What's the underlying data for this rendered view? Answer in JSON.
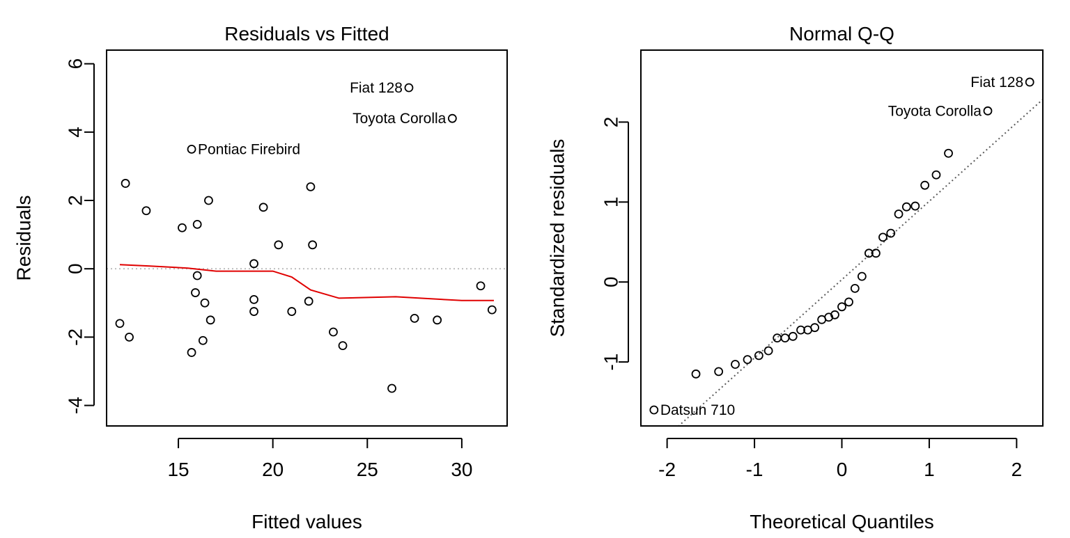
{
  "chart_data": [
    {
      "type": "scatter",
      "title": "Residuals vs Fitted",
      "xlabel": "Fitted values",
      "ylabel": "Residuals",
      "xlim": [
        11.2,
        32.4
      ],
      "ylim": [
        -4.6,
        6.4
      ],
      "xticks": [
        15,
        20,
        25,
        30
      ],
      "yticks": [
        -4,
        -2,
        0,
        2,
        4,
        6
      ],
      "reference_line": {
        "y": 0,
        "style": "dotted",
        "color": "#bdbdbd"
      },
      "smooth": {
        "color": "#e00000",
        "x": [
          11.9,
          13.5,
          15.5,
          17.0,
          19.0,
          20.0,
          21.0,
          22.0,
          23.5,
          26.5,
          30.0,
          31.7
        ],
        "y": [
          0.12,
          0.08,
          0.02,
          -0.07,
          -0.07,
          -0.07,
          -0.24,
          -0.62,
          -0.86,
          -0.82,
          -0.93,
          -0.93
        ]
      },
      "points": [
        {
          "x": 11.9,
          "y": -1.6
        },
        {
          "x": 12.2,
          "y": 2.5
        },
        {
          "x": 12.4,
          "y": -2.0
        },
        {
          "x": 13.3,
          "y": 1.7
        },
        {
          "x": 15.2,
          "y": 1.2
        },
        {
          "x": 15.7,
          "y": 3.5
        },
        {
          "x": 15.7,
          "y": -2.45
        },
        {
          "x": 15.9,
          "y": -0.7
        },
        {
          "x": 16.0,
          "y": 1.3
        },
        {
          "x": 16.0,
          "y": -0.2
        },
        {
          "x": 16.3,
          "y": -2.1
        },
        {
          "x": 16.4,
          "y": -1.0
        },
        {
          "x": 16.6,
          "y": 2.0
        },
        {
          "x": 16.7,
          "y": -1.5
        },
        {
          "x": 19.0,
          "y": 0.15
        },
        {
          "x": 19.0,
          "y": -0.9
        },
        {
          "x": 19.0,
          "y": -1.25
        },
        {
          "x": 19.5,
          "y": 1.8
        },
        {
          "x": 20.3,
          "y": 0.7
        },
        {
          "x": 21.0,
          "y": -1.25
        },
        {
          "x": 21.9,
          "y": -0.95
        },
        {
          "x": 22.0,
          "y": 2.4
        },
        {
          "x": 22.1,
          "y": 0.7
        },
        {
          "x": 23.2,
          "y": -1.85
        },
        {
          "x": 23.7,
          "y": -2.25
        },
        {
          "x": 26.3,
          "y": -3.5
        },
        {
          "x": 27.2,
          "y": 5.3
        },
        {
          "x": 27.5,
          "y": -1.45
        },
        {
          "x": 28.7,
          "y": -1.5
        },
        {
          "x": 29.5,
          "y": 4.4
        },
        {
          "x": 31.0,
          "y": -0.5
        },
        {
          "x": 31.6,
          "y": -1.2
        }
      ],
      "annotations": [
        {
          "text": "Fiat 128",
          "x": 27.2,
          "y": 5.3,
          "side": "left"
        },
        {
          "text": "Toyota Corolla",
          "x": 29.5,
          "y": 4.4,
          "side": "left"
        },
        {
          "text": "Pontiac Firebird",
          "x": 15.7,
          "y": 3.5,
          "side": "right"
        }
      ]
    },
    {
      "type": "scatter",
      "title": "Normal Q-Q",
      "xlabel": "Theoretical Quantiles",
      "ylabel": "Standardized residuals",
      "xlim": [
        -2.3,
        2.3
      ],
      "ylim": [
        -1.8,
        2.9
      ],
      "xticks": [
        -2,
        -1,
        0,
        1,
        2
      ],
      "yticks": [
        -1,
        0,
        1,
        2
      ],
      "reference_line": {
        "intercept": 0.03,
        "slope": 0.98,
        "style": "dotted",
        "color": "#5a5a5a"
      },
      "points": [
        {
          "x": -2.15,
          "y": -1.6
        },
        {
          "x": -1.67,
          "y": -1.15
        },
        {
          "x": -1.41,
          "y": -1.12
        },
        {
          "x": -1.22,
          "y": -1.03
        },
        {
          "x": -1.08,
          "y": -0.97
        },
        {
          "x": -0.95,
          "y": -0.92
        },
        {
          "x": -0.84,
          "y": -0.86
        },
        {
          "x": -0.74,
          "y": -0.7
        },
        {
          "x": -0.65,
          "y": -0.7
        },
        {
          "x": -0.56,
          "y": -0.68
        },
        {
          "x": -0.47,
          "y": -0.6
        },
        {
          "x": -0.39,
          "y": -0.6
        },
        {
          "x": -0.31,
          "y": -0.57
        },
        {
          "x": -0.23,
          "y": -0.47
        },
        {
          "x": -0.15,
          "y": -0.44
        },
        {
          "x": -0.08,
          "y": -0.41
        },
        {
          "x": 0.0,
          "y": -0.31
        },
        {
          "x": 0.08,
          "y": -0.25
        },
        {
          "x": 0.15,
          "y": -0.08
        },
        {
          "x": 0.23,
          "y": 0.07
        },
        {
          "x": 0.31,
          "y": 0.36
        },
        {
          "x": 0.39,
          "y": 0.36
        },
        {
          "x": 0.47,
          "y": 0.56
        },
        {
          "x": 0.56,
          "y": 0.61
        },
        {
          "x": 0.65,
          "y": 0.85
        },
        {
          "x": 0.74,
          "y": 0.94
        },
        {
          "x": 0.84,
          "y": 0.95
        },
        {
          "x": 0.95,
          "y": 1.21
        },
        {
          "x": 1.08,
          "y": 1.34
        },
        {
          "x": 1.22,
          "y": 1.61
        },
        {
          "x": 1.67,
          "y": 2.14
        },
        {
          "x": 2.15,
          "y": 2.5
        }
      ],
      "annotations": [
        {
          "text": "Fiat 128",
          "x": 2.15,
          "y": 2.5,
          "side": "left"
        },
        {
          "text": "Toyota Corolla",
          "x": 1.67,
          "y": 2.14,
          "side": "left"
        },
        {
          "text": "Datsun 710",
          "x": -2.15,
          "y": -1.6,
          "side": "right"
        }
      ]
    }
  ]
}
